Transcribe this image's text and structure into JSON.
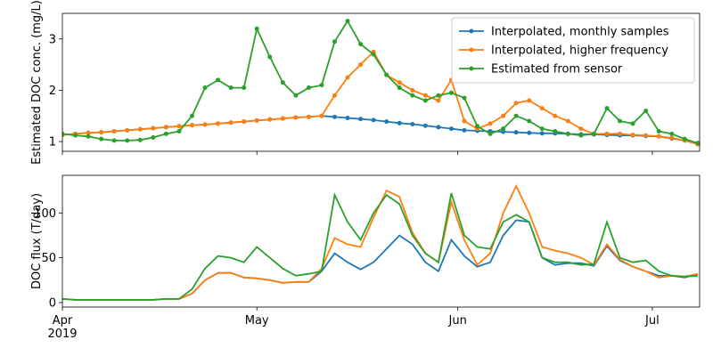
{
  "chart_data": [
    {
      "type": "line",
      "ylabel": "Estimated DOC conc. (mg/L)",
      "markers": true,
      "legend": "upper right",
      "x": [
        0,
        2,
        4,
        6,
        8,
        10,
        12,
        14,
        16,
        18,
        20,
        22,
        24,
        26,
        28,
        30,
        32,
        34,
        36,
        38,
        40,
        42,
        44,
        46,
        48,
        50,
        52,
        54,
        56,
        58,
        60,
        62,
        64,
        66,
        68,
        70,
        72,
        74,
        76,
        78,
        80,
        82,
        84,
        86,
        88,
        90,
        92,
        94,
        96,
        98
      ],
      "xlim": [
        0,
        98.3
      ],
      "xticks": [
        0,
        30,
        61,
        91
      ],
      "ylim": [
        0.81,
        3.5
      ],
      "yticks": [
        1,
        2,
        3
      ],
      "series": [
        {
          "name": "Interpolated, monthly samples",
          "color": "#1f77b4",
          "values": [
            1.13,
            1.15,
            1.17,
            1.18,
            1.2,
            1.22,
            1.24,
            1.26,
            1.28,
            1.3,
            1.32,
            1.33,
            1.35,
            1.37,
            1.39,
            1.41,
            1.43,
            1.45,
            1.47,
            1.48,
            1.5,
            1.48,
            1.46,
            1.44,
            1.42,
            1.39,
            1.36,
            1.34,
            1.31,
            1.28,
            1.25,
            1.22,
            1.21,
            1.2,
            1.19,
            1.18,
            1.17,
            1.16,
            1.16,
            1.15,
            1.14,
            1.14,
            1.13,
            1.12,
            1.12,
            1.11,
            1.1,
            1.06,
            1.02,
            0.95
          ]
        },
        {
          "name": "Interpolated, higher frequency",
          "color": "#ff7f0e",
          "values": [
            1.13,
            1.15,
            1.17,
            1.18,
            1.2,
            1.22,
            1.24,
            1.26,
            1.28,
            1.3,
            1.32,
            1.33,
            1.35,
            1.37,
            1.39,
            1.41,
            1.43,
            1.45,
            1.47,
            1.48,
            1.5,
            1.9,
            2.25,
            2.5,
            2.75,
            2.3,
            2.15,
            2.0,
            1.9,
            1.8,
            2.2,
            1.4,
            1.25,
            1.35,
            1.5,
            1.75,
            1.8,
            1.65,
            1.5,
            1.4,
            1.25,
            1.15,
            1.15,
            1.15,
            1.13,
            1.12,
            1.1,
            1.07,
            1.02,
            0.95
          ]
        },
        {
          "name": "Estimated from sensor",
          "color": "#2ca02c",
          "values": [
            1.15,
            1.12,
            1.1,
            1.05,
            1.02,
            1.02,
            1.03,
            1.08,
            1.15,
            1.2,
            1.5,
            2.05,
            2.2,
            2.05,
            2.05,
            3.2,
            2.65,
            2.15,
            1.9,
            2.05,
            2.1,
            2.95,
            3.35,
            2.9,
            2.7,
            2.3,
            2.05,
            1.9,
            1.8,
            1.9,
            1.95,
            1.85,
            1.3,
            1.15,
            1.25,
            1.5,
            1.4,
            1.25,
            1.2,
            1.15,
            1.12,
            1.15,
            1.65,
            1.4,
            1.35,
            1.6,
            1.2,
            1.15,
            1.05,
            0.97
          ]
        }
      ]
    },
    {
      "type": "line",
      "ylabel": "DOC flux (T/day)",
      "markers": false,
      "x": [
        0,
        2,
        4,
        6,
        8,
        10,
        12,
        14,
        16,
        18,
        20,
        22,
        24,
        26,
        28,
        30,
        32,
        34,
        36,
        38,
        40,
        42,
        44,
        46,
        48,
        50,
        52,
        54,
        56,
        58,
        60,
        62,
        64,
        66,
        68,
        70,
        72,
        74,
        76,
        78,
        80,
        82,
        84,
        86,
        88,
        90,
        92,
        94,
        96,
        98
      ],
      "xlim": [
        0,
        98.3
      ],
      "xticks": [
        {
          "value": 0,
          "label": "Apr\n2019"
        },
        {
          "value": 30,
          "label": "May"
        },
        {
          "value": 61,
          "label": "Jun"
        },
        {
          "value": 91,
          "label": "Jul"
        }
      ],
      "ylim": [
        -5,
        142
      ],
      "yticks": [
        0,
        50,
        100
      ],
      "series": [
        {
          "color": "#1f77b4",
          "values": [
            4,
            3,
            3,
            3,
            3,
            3,
            3,
            3,
            4,
            4,
            10,
            25,
            33,
            33,
            28,
            27,
            25,
            22,
            23,
            23,
            35,
            55,
            45,
            37,
            45,
            60,
            75,
            65,
            45,
            35,
            70,
            52,
            40,
            45,
            75,
            92,
            90,
            50,
            42,
            44,
            44,
            41,
            63,
            47,
            40,
            35,
            30,
            30,
            28,
            32
          ]
        },
        {
          "color": "#ff7f0e",
          "values": [
            4,
            3,
            3,
            3,
            3,
            3,
            3,
            3,
            4,
            4,
            10,
            25,
            33,
            33,
            28,
            27,
            25,
            22,
            23,
            23,
            38,
            72,
            65,
            62,
            95,
            125,
            118,
            78,
            55,
            45,
            112,
            70,
            42,
            55,
            100,
            130,
            100,
            62,
            58,
            55,
            50,
            42,
            65,
            48,
            40,
            35,
            28,
            30,
            29,
            32
          ]
        },
        {
          "color": "#2ca02c",
          "values": [
            4,
            3,
            3,
            3,
            3,
            3,
            3,
            3,
            4,
            4,
            15,
            38,
            52,
            50,
            45,
            62,
            50,
            38,
            30,
            32,
            35,
            120,
            90,
            70,
            100,
            120,
            110,
            75,
            55,
            45,
            122,
            75,
            62,
            60,
            90,
            98,
            90,
            50,
            45,
            45,
            42,
            43,
            90,
            50,
            45,
            47,
            35,
            30,
            29,
            30
          ]
        }
      ]
    }
  ]
}
